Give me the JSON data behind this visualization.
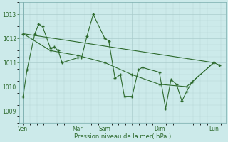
{
  "bg_color": "#cceaea",
  "grid_color": "#aacccc",
  "line_color": "#2d6a2d",
  "marker_color": "#2d6a2d",
  "xlabel": "Pression niveau de la mer( hPa )",
  "ylim": [
    1008.5,
    1013.5
  ],
  "yticks": [
    1009,
    1010,
    1011,
    1012,
    1013
  ],
  "xtick_labels": [
    "Ven",
    "",
    "Mar",
    "Sam",
    "",
    "Dim",
    "",
    "Lun"
  ],
  "xtick_positions": [
    0,
    35,
    70,
    105,
    140,
    175,
    210,
    245
  ],
  "vline_positions": [
    0,
    70,
    105,
    175,
    245
  ],
  "series1_x": [
    0,
    5,
    15,
    20,
    25,
    35,
    40,
    45,
    50,
    70,
    75,
    82,
    90,
    105,
    110,
    118,
    125,
    130,
    140,
    148,
    153,
    175,
    183,
    190,
    197,
    204,
    210,
    217,
    245,
    252
  ],
  "series1_y": [
    1009.6,
    1010.7,
    1012.2,
    1012.6,
    1012.5,
    1011.6,
    1011.65,
    1011.5,
    1011.0,
    1011.2,
    1011.2,
    1012.1,
    1013.0,
    1012.0,
    1011.9,
    1010.35,
    1010.5,
    1009.6,
    1009.6,
    1010.7,
    1010.8,
    1010.6,
    1009.1,
    1010.3,
    1010.1,
    1009.4,
    1009.8,
    1010.2,
    1011.0,
    1010.9
  ],
  "series2_x": [
    0,
    35,
    70,
    105,
    140,
    175,
    210,
    245
  ],
  "series2_y": [
    1012.2,
    1011.5,
    1011.3,
    1011.0,
    1010.5,
    1010.1,
    1010.0,
    1011.0
  ],
  "trend_x": [
    0,
    245
  ],
  "trend_y": [
    1012.2,
    1011.0
  ],
  "figsize": [
    3.2,
    2.0
  ],
  "dpi": 100
}
